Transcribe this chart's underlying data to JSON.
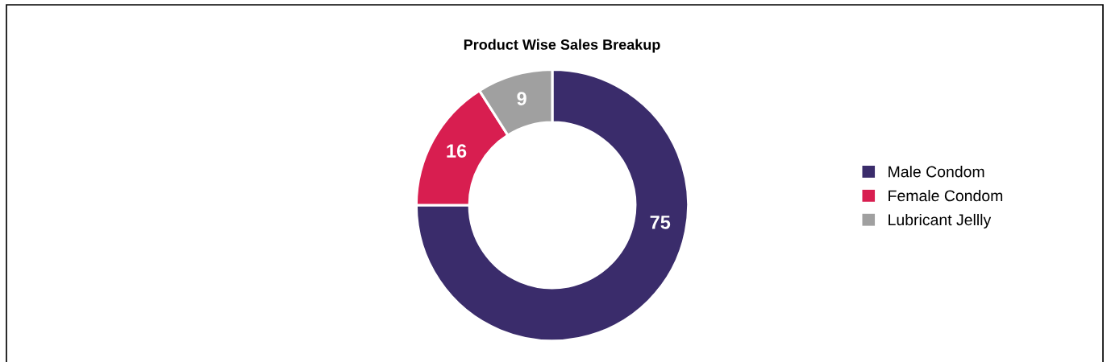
{
  "chart_data": {
    "type": "donut",
    "title": "Product Wise Sales Breakup",
    "categories": [
      "Male Condom",
      "Female Condom",
      "Lubricant Jellly"
    ],
    "values": [
      75,
      16,
      9
    ],
    "colors": [
      "#3a2c6b",
      "#d81e50",
      "#a0a0a0"
    ],
    "data_labels": true,
    "legend": "right"
  }
}
